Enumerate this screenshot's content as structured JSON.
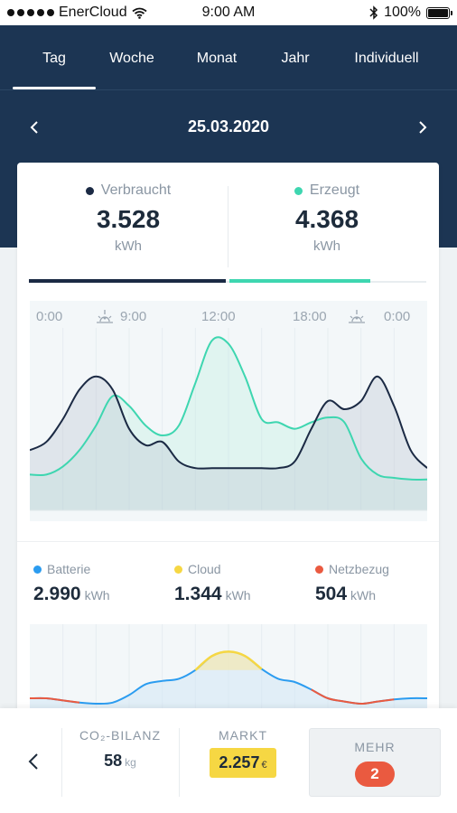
{
  "status_bar": {
    "carrier": "EnerCloud",
    "time": "9:00 AM",
    "battery": "100%"
  },
  "tabs": [
    {
      "label": "Tag",
      "active": true
    },
    {
      "label": "Woche",
      "active": false
    },
    {
      "label": "Monat",
      "active": false
    },
    {
      "label": "Jahr",
      "active": false
    },
    {
      "label": "Individuell",
      "active": false
    }
  ],
  "date": "25.03.2020",
  "summary": {
    "consumed": {
      "label": "Verbraucht",
      "value": "3.528",
      "unit": "kWh",
      "color": "#1b2a44"
    },
    "produced": {
      "label": "Erzeugt",
      "value": "4.368",
      "unit": "kWh",
      "color": "#3ed6b0"
    }
  },
  "chart_data": [
    {
      "type": "line",
      "x_ticks": [
        "0:00",
        "9:00",
        "12:00",
        "18:00",
        "0:00"
      ],
      "x_markers": [
        "sunrise",
        "sunset"
      ],
      "y_visible": false,
      "grid": "vertical",
      "series": [
        {
          "name": "Verbraucht",
          "color": "#1b2a44",
          "x": [
            0,
            1,
            2,
            3,
            4,
            5,
            6,
            7,
            8,
            9,
            10,
            11,
            12,
            13,
            14,
            15,
            16,
            17,
            18,
            19,
            20,
            21,
            22,
            23,
            24
          ],
          "y": [
            0.33,
            0.38,
            0.52,
            0.7,
            0.78,
            0.7,
            0.46,
            0.36,
            0.38,
            0.26,
            0.22,
            0.22,
            0.22,
            0.22,
            0.22,
            0.22,
            0.26,
            0.46,
            0.63,
            0.58,
            0.63,
            0.78,
            0.6,
            0.33,
            0.22
          ]
        },
        {
          "name": "Erzeugt",
          "color": "#3ed6b0",
          "x": [
            0,
            1,
            2,
            3,
            4,
            5,
            6,
            7,
            8,
            9,
            10,
            11,
            12,
            13,
            14,
            15,
            16,
            17,
            18,
            19,
            20,
            21,
            22,
            23,
            24
          ],
          "y": [
            0.18,
            0.18,
            0.23,
            0.33,
            0.48,
            0.66,
            0.6,
            0.48,
            0.42,
            0.48,
            0.74,
            1.0,
            0.98,
            0.78,
            0.52,
            0.5,
            0.46,
            0.5,
            0.53,
            0.5,
            0.28,
            0.18,
            0.16,
            0.15,
            0.15
          ]
        }
      ]
    },
    {
      "type": "line",
      "x_visible": false,
      "y_visible": false,
      "series": [
        {
          "name": "Batterie",
          "color": "#2b9cf0",
          "x": [
            0,
            1,
            2,
            3,
            4,
            5,
            6,
            7,
            8,
            9,
            10,
            11,
            12,
            13,
            14,
            15,
            16,
            17,
            18,
            19,
            20,
            21,
            22,
            23,
            24
          ],
          "y": [
            0.1,
            0.1,
            0.06,
            0.02,
            0.0,
            0.02,
            0.16,
            0.36,
            0.42,
            0.46,
            0.62,
            0.88,
            0.96,
            0.88,
            0.64,
            0.46,
            0.4,
            0.26,
            0.1,
            0.04,
            0.0,
            0.04,
            0.08,
            0.1,
            0.1
          ]
        },
        {
          "name": "Cloud",
          "color": "#f6d743",
          "x": [
            10,
            11,
            12,
            13,
            14
          ],
          "y": [
            0.62,
            0.88,
            0.96,
            0.88,
            0.64
          ]
        },
        {
          "name": "Netzbezug",
          "color": "#ea5a40",
          "x": [
            0,
            1,
            2,
            3,
            17,
            18,
            19,
            20,
            21,
            22
          ],
          "y": [
            0.1,
            0.1,
            0.06,
            0.02,
            0.26,
            0.1,
            0.04,
            0.0,
            0.04,
            0.08
          ]
        }
      ]
    }
  ],
  "breakdown": [
    {
      "label": "Batterie",
      "value": "2.990",
      "unit": "kWh",
      "color": "#2b9cf0"
    },
    {
      "label": "Cloud",
      "value": "1.344",
      "unit": "kWh",
      "color": "#f6d743"
    },
    {
      "label": "Netzbezug",
      "value": "504",
      "unit": "kWh",
      "color": "#ea5a40"
    }
  ],
  "bottom_bar": {
    "co2": {
      "title": "CO₂-BILANZ",
      "value": "58",
      "unit": "kg"
    },
    "markt": {
      "title": "MARKT",
      "value": "2.257",
      "unit": "€"
    },
    "mehr": {
      "title": "MEHR",
      "badge": "2"
    }
  }
}
